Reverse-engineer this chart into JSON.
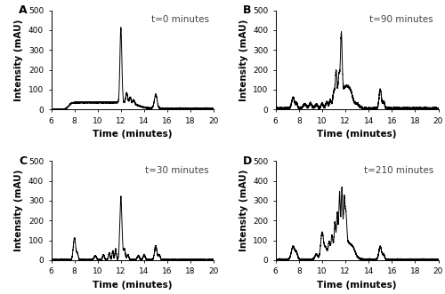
{
  "panels": [
    {
      "label": "A",
      "annotation": "t=0 minutes",
      "xlim": [
        6,
        20
      ],
      "ylim": [
        0,
        500
      ],
      "yticks": [
        0,
        100,
        200,
        300,
        400,
        500
      ],
      "xticks": [
        6,
        8,
        10,
        12,
        14,
        16,
        18,
        20
      ],
      "xlabel": "Time (minutes)",
      "ylabel": "Intensity (mAU)"
    },
    {
      "label": "B",
      "annotation": "t=90 minutes",
      "xlim": [
        6,
        20
      ],
      "ylim": [
        0,
        500
      ],
      "yticks": [
        0,
        100,
        200,
        300,
        400,
        500
      ],
      "xticks": [
        6,
        8,
        10,
        12,
        14,
        16,
        18,
        20
      ],
      "xlabel": "Time (minutes)",
      "ylabel": "Intensity (mAU)"
    },
    {
      "label": "C",
      "annotation": "t=30 minutes",
      "xlim": [
        6,
        20
      ],
      "ylim": [
        0,
        500
      ],
      "yticks": [
        0,
        100,
        200,
        300,
        400,
        500
      ],
      "xticks": [
        6,
        8,
        10,
        12,
        14,
        16,
        18,
        20
      ],
      "xlabel": "Time (minutes)",
      "ylabel": "Intensity (mAU)"
    },
    {
      "label": "D",
      "annotation": "t=210 minutes",
      "xlim": [
        6,
        20
      ],
      "ylim": [
        0,
        500
      ],
      "yticks": [
        0,
        100,
        200,
        300,
        400,
        500
      ],
      "xticks": [
        6,
        8,
        10,
        12,
        14,
        16,
        18,
        20
      ],
      "xlabel": "Time (minutes)",
      "ylabel": "Intensity (mAU)"
    }
  ],
  "line_color": "#000000",
  "line_width": 0.7,
  "background_color": "#ffffff",
  "label_fontsize": 9,
  "tick_fontsize": 6.5,
  "axis_label_fontsize": 7.5,
  "annotation_fontsize": 7.5
}
